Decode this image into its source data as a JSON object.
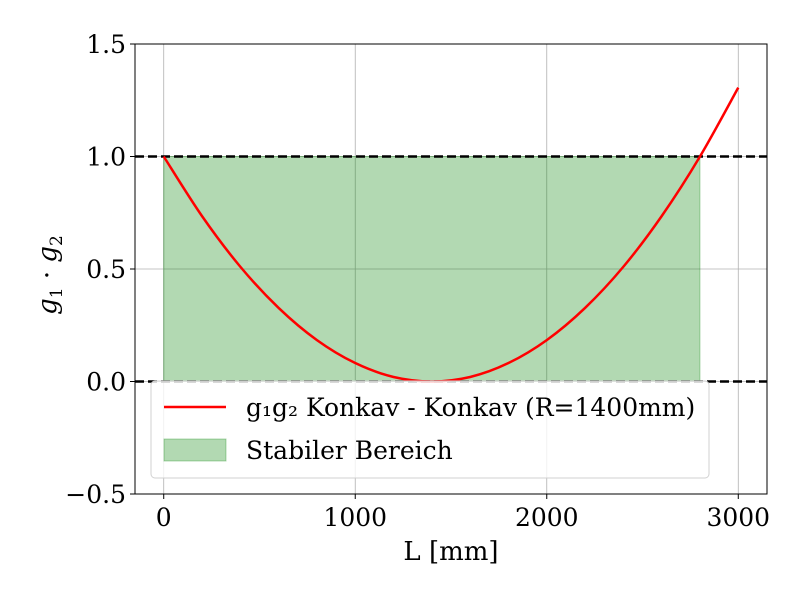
{
  "chart_data": {
    "type": "line",
    "title": "",
    "xlabel": "L [mm]",
    "ylabel": "g₁ · g₂",
    "xlim": [
      -150,
      3150
    ],
    "ylim": [
      -0.5,
      1.5
    ],
    "xticks": [
      0,
      1000,
      2000,
      3000
    ],
    "xtick_labels": [
      "0",
      "1000",
      "2000",
      "3000"
    ],
    "yticks": [
      -0.5,
      0.0,
      0.5,
      1.0,
      1.5
    ],
    "ytick_labels": [
      "−0.5",
      "0.0",
      "0.5",
      "1.0",
      "1.5"
    ],
    "grid": true,
    "legend_position": "lower-center",
    "series": [
      {
        "name": "g₁g₂ Konkav - Konkav (R=1400mm)",
        "color": "#ff0000",
        "x": [
          0,
          200,
          400,
          600,
          800,
          1000,
          1200,
          1400,
          1600,
          1800,
          2000,
          2200,
          2400,
          2600,
          2800,
          3000
        ],
        "y": [
          1.0,
          0.735,
          0.51,
          0.327,
          0.184,
          0.082,
          0.02,
          0.0,
          0.02,
          0.082,
          0.184,
          0.327,
          0.51,
          0.735,
          1.0,
          1.306
        ]
      }
    ],
    "fill_region": {
      "name": "Stabiler Bereich",
      "color": "#008000",
      "x_range": [
        0,
        2800
      ],
      "y_range": [
        0.0,
        1.0
      ]
    },
    "hlines": [
      {
        "y": 0.0,
        "style": "dashed",
        "color": "#000000"
      },
      {
        "y": 1.0,
        "style": "dashed",
        "color": "#000000"
      }
    ]
  }
}
